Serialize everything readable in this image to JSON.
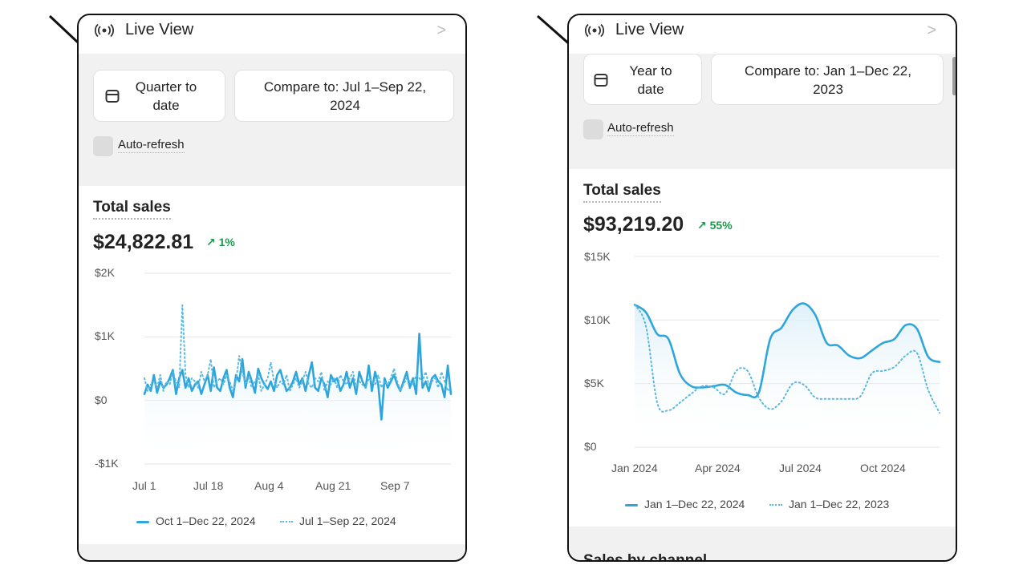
{
  "colors": {
    "series_line": "#2ea6dc",
    "compare_line": "#57b8e6",
    "positive": "#1e9a4d",
    "panel_bg": "#f1f1f1"
  },
  "left": {
    "header": {
      "icon": "live-broadcast-icon",
      "label": "Live View",
      "chevron": ">"
    },
    "date_range_button": "Quarter to date",
    "compare_button": "Compare to: Jul 1–Sep 22, 2024",
    "auto_refresh": "Auto-refresh",
    "metric_title": "Total sales",
    "metric_value": "$24,822.81",
    "metric_change": "1%",
    "chart_data": {
      "type": "line",
      "y_ticks": [
        "$2K",
        "$1K",
        "$0",
        "-$1K"
      ],
      "ylim": [
        -1000,
        2000
      ],
      "x_ticks": [
        "Jul 1",
        "Jul 18",
        "Aug 4",
        "Aug 21",
        "Sep 7"
      ],
      "legend": [
        "Oct 1–Dec 22, 2024",
        "Jul 1–Sep 22, 2024"
      ],
      "series": [
        {
          "name": "Oct 1–Dec 22, 2024",
          "style": "solid",
          "values": [
            100,
            250,
            150,
            400,
            120,
            300,
            200,
            250,
            350,
            480,
            100,
            350,
            480,
            200,
            350,
            150,
            250,
            300,
            100,
            250,
            400,
            150,
            520,
            200,
            150,
            350,
            480,
            200,
            50,
            400,
            300,
            650,
            200,
            450,
            300,
            120,
            500,
            350,
            250,
            180,
            300,
            150,
            400,
            480,
            300,
            150,
            200,
            300,
            450,
            250,
            350,
            150,
            400,
            600,
            200,
            150,
            350,
            250,
            50,
            400,
            300,
            350,
            150,
            250,
            450,
            200,
            350,
            100,
            450,
            300,
            200,
            550,
            150,
            450,
            250,
            -300,
            350,
            200,
            300,
            400,
            250,
            150,
            300,
            450,
            200,
            350,
            100,
            1050,
            200,
            300,
            150,
            350,
            400,
            300,
            250,
            50,
            550,
            100
          ]
        },
        {
          "name": "Jul 1–Sep 22, 2024",
          "style": "dotted",
          "values": [
            350,
            150,
            250,
            300,
            200,
            400,
            150,
            300,
            250,
            450,
            300,
            200,
            1500,
            400,
            200,
            350,
            300,
            200,
            450,
            300,
            400,
            650,
            200,
            300,
            350,
            250,
            400,
            300,
            150,
            300,
            700,
            450,
            250,
            350,
            200,
            300,
            400,
            150,
            250,
            350,
            600,
            300,
            200,
            300,
            250,
            400,
            150,
            250,
            350,
            200,
            300,
            450,
            250,
            200,
            350,
            300,
            450,
            150,
            300,
            250,
            350,
            200,
            400,
            300,
            250,
            350,
            450,
            200,
            300,
            250,
            200,
            350,
            300,
            250,
            400,
            200,
            300,
            250,
            350,
            500,
            300,
            150,
            250,
            350,
            300,
            250,
            400,
            350,
            300,
            450,
            250,
            300,
            350,
            200,
            450,
            300,
            150,
            200
          ]
        }
      ]
    }
  },
  "right": {
    "header": {
      "icon": "live-broadcast-icon",
      "label": "Live View",
      "chevron": ">"
    },
    "date_range_button": "Year to date",
    "compare_button": "Compare to: Jan 1–Dec 22, 2023",
    "auto_refresh": "Auto-refresh",
    "metric_title": "Total sales",
    "metric_value": "$93,219.20",
    "metric_change": "55%",
    "next_section_title": "Sales by channel",
    "chart_data": {
      "type": "line",
      "y_ticks": [
        "$15K",
        "$10K",
        "$5K",
        "$0"
      ],
      "ylim": [
        0,
        15000
      ],
      "x_ticks": [
        "Jan 2024",
        "Apr 2024",
        "Jul 2024",
        "Oct 2024"
      ],
      "legend": [
        "Jan 1–Dec 22, 2024",
        "Jan 1–Dec 22, 2023"
      ],
      "series": [
        {
          "name": "Jan 1–Dec 22, 2024",
          "style": "solid",
          "values": [
            11200,
            10600,
            8900,
            8500,
            5800,
            4800,
            4700,
            4800,
            4900,
            4300,
            4100,
            4300,
            8500,
            9400,
            10800,
            11300,
            10400,
            8200,
            8000,
            7200,
            7000,
            7600,
            8200,
            8500,
            9600,
            9300,
            7100,
            6700
          ]
        },
        {
          "name": "Jan 1–Dec 22, 2023",
          "style": "dotted",
          "values": [
            11200,
            9500,
            3500,
            2900,
            3500,
            4200,
            4800,
            4700,
            4200,
            6000,
            6000,
            3900,
            3000,
            3600,
            5000,
            4900,
            3900,
            3800,
            3800,
            3800,
            4000,
            5800,
            6000,
            6300,
            7200,
            7400,
            4500,
            2700
          ]
        }
      ]
    }
  },
  "annotations": {
    "arrow_count": 2
  }
}
